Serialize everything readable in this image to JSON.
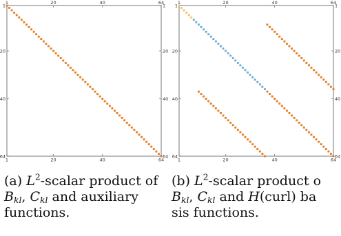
{
  "colors": {
    "orange": "#e67e22",
    "blue": "#6aaed6",
    "light_orange": "#f4c06a",
    "frame": "#555555"
  },
  "chart_data": [
    {
      "type": "heatmap",
      "matrix_size": 64,
      "axis_ticks": [
        "1",
        "20",
        "40",
        "64"
      ],
      "entries": [
        {
          "band": "main-diagonal",
          "offset": 0,
          "rows": [
            1,
            64
          ],
          "color": "orange"
        }
      ]
    },
    {
      "type": "heatmap",
      "matrix_size": 64,
      "axis_ticks": [
        "1",
        "20",
        "40",
        "64"
      ],
      "entries": [
        {
          "band": "main-diagonal",
          "offset": 0,
          "rows": [
            1,
            6
          ],
          "color": "light_orange"
        },
        {
          "band": "main-diagonal",
          "offset": 0,
          "rows": [
            7,
            36
          ],
          "color": "blue"
        },
        {
          "band": "main-diagonal",
          "offset": 0,
          "rows": [
            37,
            64
          ],
          "color": "orange"
        },
        {
          "band": "upper-offdiagonal",
          "offset": 28,
          "rows": [
            9,
            36
          ],
          "color": "orange"
        },
        {
          "band": "lower-offdiagonal",
          "offset": -28,
          "rows": [
            37,
            64
          ],
          "color": "orange"
        }
      ]
    }
  ],
  "captions": {
    "a": {
      "label": "(a)",
      "line1_pre": "-scalar product of",
      "line2_mid": " and auxiliary",
      "line3": "functions."
    },
    "b": {
      "label": "(b)",
      "line1_pre": "-scalar product o",
      "line2_mid": " and ",
      "line2_post": "(curl) ba",
      "line3": "sis functions."
    },
    "math": {
      "L": "L",
      "two": "2",
      "B": "B",
      "C": "C",
      "kl": "kl",
      "H": "H"
    }
  }
}
